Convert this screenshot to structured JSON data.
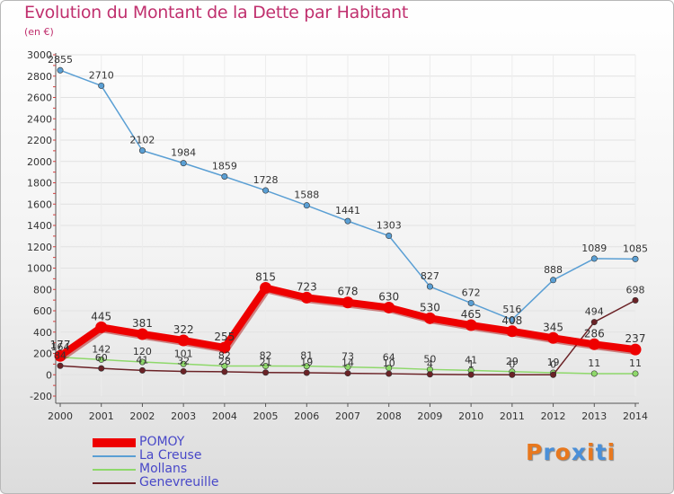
{
  "title": "Evolution du Montant de la Dette par Habitant",
  "subtitle": "(en €)",
  "logo": {
    "text": "Proxiti",
    "letter_colors": [
      "#e8781e",
      "#4a8fd8",
      "#e8781e",
      "#4a8fd8",
      "#e8781e",
      "#4a8fd8",
      "#e8781e"
    ]
  },
  "chart_data": {
    "type": "line",
    "categories": [
      "2000",
      "2001",
      "2002",
      "2003",
      "2004",
      "2005",
      "2006",
      "2007",
      "2008",
      "2009",
      "2010",
      "2011",
      "2012",
      "2013",
      "2014"
    ],
    "ylim": [
      -200,
      3000
    ],
    "yticks": [
      -200,
      0,
      200,
      400,
      600,
      800,
      1000,
      1200,
      1400,
      1600,
      1800,
      2000,
      2200,
      2400,
      2600,
      2800,
      3000
    ],
    "grid": true,
    "legend_position": "bottom-left",
    "series": [
      {
        "name": "POMOY",
        "color": "#ee0000",
        "width": 8,
        "values": [
          177,
          445,
          381,
          322,
          255,
          815,
          723,
          678,
          630,
          530,
          465,
          408,
          345,
          286,
          237
        ]
      },
      {
        "name": "La Creuse",
        "color": "#5a9fd4",
        "width": 1.5,
        "values": [
          2855,
          2710,
          2102,
          1984,
          1859,
          1728,
          1588,
          1441,
          1303,
          827,
          672,
          516,
          888,
          1089,
          1085
        ]
      },
      {
        "name": "Mollans",
        "color": "#8ed86a",
        "width": 1.5,
        "values": [
          164,
          142,
          120,
          101,
          82,
          82,
          81,
          73,
          64,
          50,
          41,
          29,
          19,
          11,
          11
        ]
      },
      {
        "name": "Genevreuille",
        "color": "#6b2226",
        "width": 1.5,
        "values": [
          84,
          60,
          41,
          32,
          28,
          21,
          19,
          14,
          10,
          4,
          1,
          0,
          0,
          494,
          698
        ]
      }
    ]
  }
}
